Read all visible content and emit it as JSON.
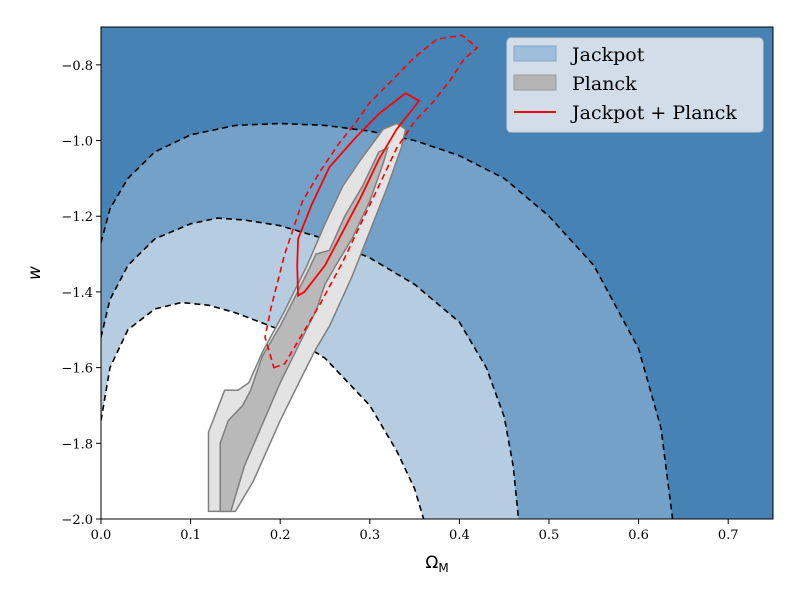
{
  "chart_data": {
    "type": "contour",
    "xlabel": "Ω",
    "xlabel_sub": "M",
    "ylabel": "w",
    "xlim": [
      0.0,
      0.75
    ],
    "ylim": [
      -2.0,
      -0.7
    ],
    "xticks": [
      0.0,
      0.1,
      0.2,
      0.3,
      0.4,
      0.5,
      0.6,
      0.7
    ],
    "xtick_labels": [
      "0.0",
      "0.1",
      "0.2",
      "0.3",
      "0.4",
      "0.5",
      "0.6",
      "0.7"
    ],
    "yticks": [
      -2.0,
      -1.8,
      -1.6,
      -1.4,
      -1.2,
      -1.0,
      -0.8
    ],
    "ytick_labels": [
      "−2.0",
      "−1.8",
      "−1.6",
      "−1.4",
      "−1.2",
      "−1.0",
      "−0.8"
    ],
    "grid": false,
    "legend_position": "top-right",
    "legend": [
      {
        "label": "Jackpot",
        "kind": "patch",
        "color": "#9fbedb"
      },
      {
        "label": "Planck",
        "kind": "patch",
        "color": "#b4b4b4"
      },
      {
        "label": "Jackpot + Planck",
        "kind": "line",
        "color": "#ff0000"
      }
    ],
    "series": [
      {
        "name": "Jackpot",
        "kind": "filled_levels",
        "color_outer": "#4682b4",
        "color_level1": "#74a1c8",
        "color_level2": "#b6cce1",
        "color_inner": "#ffffff",
        "contours": [
          {
            "level": "3sigma",
            "points": [
              [
                0.0,
                -1.27
              ],
              [
                0.01,
                -1.18
              ],
              [
                0.03,
                -1.1
              ],
              [
                0.06,
                -1.03
              ],
              [
                0.1,
                -0.985
              ],
              [
                0.15,
                -0.96
              ],
              [
                0.2,
                -0.955
              ],
              [
                0.25,
                -0.96
              ],
              [
                0.3,
                -0.975
              ],
              [
                0.35,
                -1.0
              ],
              [
                0.4,
                -1.04
              ],
              [
                0.45,
                -1.1
              ],
              [
                0.5,
                -1.2
              ],
              [
                0.55,
                -1.33
              ],
              [
                0.6,
                -1.55
              ],
              [
                0.625,
                -1.76
              ],
              [
                0.638,
                -2.0
              ]
            ]
          },
          {
            "level": "2sigma",
            "points": [
              [
                0.0,
                -1.52
              ],
              [
                0.01,
                -1.42
              ],
              [
                0.03,
                -1.33
              ],
              [
                0.06,
                -1.26
              ],
              [
                0.1,
                -1.22
              ],
              [
                0.13,
                -1.205
              ],
              [
                0.16,
                -1.21
              ],
              [
                0.2,
                -1.225
              ],
              [
                0.25,
                -1.26
              ],
              [
                0.3,
                -1.31
              ],
              [
                0.35,
                -1.38
              ],
              [
                0.4,
                -1.48
              ],
              [
                0.43,
                -1.6
              ],
              [
                0.45,
                -1.73
              ],
              [
                0.46,
                -1.86
              ],
              [
                0.466,
                -2.0
              ]
            ]
          },
          {
            "level": "1sigma",
            "points": [
              [
                0.0,
                -1.74
              ],
              [
                0.01,
                -1.6
              ],
              [
                0.03,
                -1.5
              ],
              [
                0.06,
                -1.445
              ],
              [
                0.09,
                -1.428
              ],
              [
                0.12,
                -1.435
              ],
              [
                0.15,
                -1.455
              ],
              [
                0.2,
                -1.5
              ],
              [
                0.25,
                -1.575
              ],
              [
                0.3,
                -1.7
              ],
              [
                0.33,
                -1.82
              ],
              [
                0.35,
                -1.92
              ],
              [
                0.36,
                -2.0
              ]
            ]
          }
        ]
      },
      {
        "name": "Planck",
        "kind": "filled_contours",
        "fill_outer": "#e3e3e3",
        "fill_inner": "#b9b9b9",
        "stroke": "#7f7f7f",
        "outer": [
          [
            0.12,
            -1.98
          ],
          [
            0.15,
            -1.98
          ],
          [
            0.17,
            -1.9
          ],
          [
            0.2,
            -1.74
          ],
          [
            0.225,
            -1.62
          ],
          [
            0.24,
            -1.55
          ],
          [
            0.255,
            -1.49
          ],
          [
            0.28,
            -1.36
          ],
          [
            0.3,
            -1.24
          ],
          [
            0.32,
            -1.12
          ],
          [
            0.335,
            -1.02
          ],
          [
            0.34,
            -0.97
          ],
          [
            0.33,
            -0.955
          ],
          [
            0.315,
            -0.97
          ],
          [
            0.29,
            -1.05
          ],
          [
            0.27,
            -1.12
          ],
          [
            0.25,
            -1.22
          ],
          [
            0.23,
            -1.33
          ],
          [
            0.205,
            -1.45
          ],
          [
            0.18,
            -1.56
          ],
          [
            0.165,
            -1.64
          ],
          [
            0.153,
            -1.66
          ],
          [
            0.138,
            -1.66
          ],
          [
            0.125,
            -1.74
          ],
          [
            0.12,
            -1.77
          ],
          [
            0.12,
            -1.94
          ]
        ],
        "inner": [
          [
            0.133,
            -1.98
          ],
          [
            0.145,
            -1.98
          ],
          [
            0.16,
            -1.86
          ],
          [
            0.2,
            -1.64
          ],
          [
            0.225,
            -1.52
          ],
          [
            0.24,
            -1.45
          ],
          [
            0.25,
            -1.38
          ],
          [
            0.262,
            -1.33
          ],
          [
            0.28,
            -1.26
          ],
          [
            0.3,
            -1.16
          ],
          [
            0.315,
            -1.06
          ],
          [
            0.32,
            -1.02
          ],
          [
            0.31,
            -1.03
          ],
          [
            0.292,
            -1.12
          ],
          [
            0.272,
            -1.2
          ],
          [
            0.255,
            -1.29
          ],
          [
            0.24,
            -1.3
          ],
          [
            0.23,
            -1.35
          ],
          [
            0.213,
            -1.43
          ],
          [
            0.2,
            -1.49
          ],
          [
            0.18,
            -1.57
          ],
          [
            0.167,
            -1.66
          ],
          [
            0.158,
            -1.7
          ],
          [
            0.142,
            -1.74
          ],
          [
            0.133,
            -1.8
          ]
        ]
      },
      {
        "name": "Jackpot + Planck",
        "kind": "contour_lines",
        "color": "#ff0000",
        "solid": [
          [
            0.22,
            -1.41
          ],
          [
            0.227,
            -1.4
          ],
          [
            0.25,
            -1.33
          ],
          [
            0.27,
            -1.24
          ],
          [
            0.29,
            -1.15
          ],
          [
            0.31,
            -1.05
          ],
          [
            0.33,
            -0.97
          ],
          [
            0.35,
            -0.91
          ],
          [
            0.355,
            -0.895
          ],
          [
            0.34,
            -0.875
          ],
          [
            0.31,
            -0.93
          ],
          [
            0.285,
            -0.99
          ],
          [
            0.255,
            -1.07
          ],
          [
            0.235,
            -1.17
          ],
          [
            0.22,
            -1.26
          ],
          [
            0.219,
            -1.33
          ]
        ],
        "dashed": [
          [
            0.193,
            -1.6
          ],
          [
            0.205,
            -1.59
          ],
          [
            0.22,
            -1.53
          ],
          [
            0.245,
            -1.43
          ],
          [
            0.27,
            -1.32
          ],
          [
            0.29,
            -1.22
          ],
          [
            0.31,
            -1.12
          ],
          [
            0.33,
            -1.02
          ],
          [
            0.35,
            -0.95
          ],
          [
            0.37,
            -0.9
          ],
          [
            0.39,
            -0.84
          ],
          [
            0.405,
            -0.785
          ],
          [
            0.42,
            -0.755
          ],
          [
            0.403,
            -0.722
          ],
          [
            0.375,
            -0.732
          ],
          [
            0.35,
            -0.78
          ],
          [
            0.325,
            -0.84
          ],
          [
            0.3,
            -0.9
          ],
          [
            0.285,
            -0.95
          ],
          [
            0.265,
            -1.01
          ],
          [
            0.245,
            -1.08
          ],
          [
            0.225,
            -1.16
          ],
          [
            0.205,
            -1.3
          ],
          [
            0.19,
            -1.44
          ],
          [
            0.183,
            -1.52
          ]
        ]
      }
    ]
  }
}
